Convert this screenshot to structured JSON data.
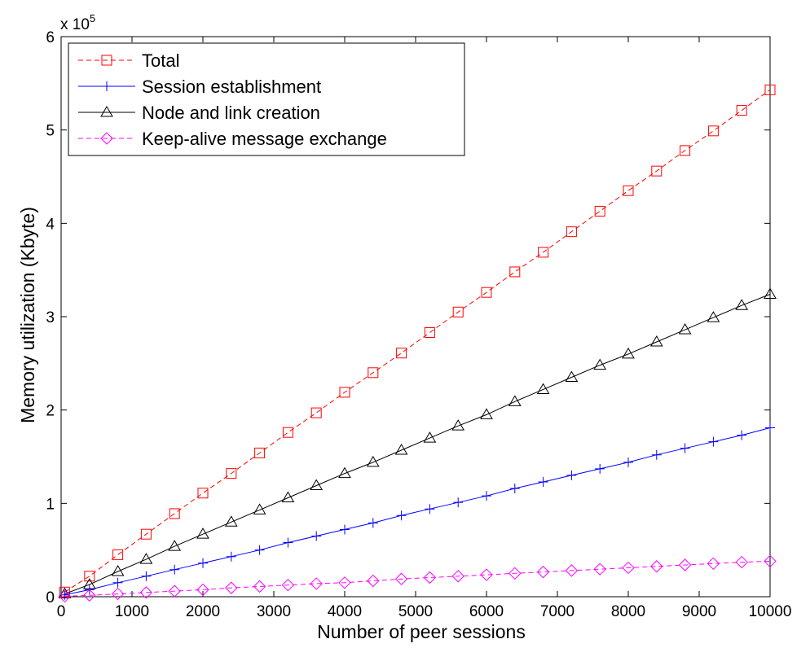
{
  "chart_data": {
    "type": "line",
    "title": "",
    "xlabel": "Number of peer sessions",
    "ylabel": "Memory utilization (Kbyte)",
    "xlim": [
      0,
      10000
    ],
    "ylim": [
      0,
      600000
    ],
    "x_ticks": [
      0,
      1000,
      2000,
      3000,
      4000,
      5000,
      6000,
      7000,
      8000,
      9000,
      10000
    ],
    "y_ticks": [
      0,
      1,
      2,
      3,
      4,
      5,
      6
    ],
    "y_multiplier_base": "x 10",
    "y_multiplier_exp": "5",
    "grid": false,
    "legend_position": "top-left",
    "x": [
      50,
      400,
      800,
      1200,
      1600,
      2000,
      2400,
      2800,
      3200,
      3600,
      4000,
      4400,
      4800,
      5200,
      5600,
      6000,
      6400,
      6800,
      7200,
      7600,
      8000,
      8400,
      8800,
      9200,
      9600,
      10000
    ],
    "series": [
      {
        "name": "Total",
        "color": "#ff0000",
        "line_style": "dashed",
        "marker": "square",
        "values": [
          5000,
          22000,
          45000,
          67000,
          89000,
          111000,
          132000,
          154000,
          176000,
          197000,
          219000,
          240000,
          261000,
          283000,
          305000,
          326000,
          348000,
          369000,
          391000,
          413000,
          435000,
          456000,
          478000,
          499000,
          521000,
          543000
        ]
      },
      {
        "name": "Session establishment",
        "color": "#0000ff",
        "line_style": "solid",
        "marker": "plus",
        "values": [
          2000,
          7500,
          15000,
          22000,
          29000,
          36000,
          43000,
          50000,
          58000,
          65000,
          72000,
          79000,
          87000,
          94000,
          101000,
          108000,
          116000,
          123000,
          130000,
          137000,
          144000,
          152000,
          159000,
          166000,
          173000,
          181000
        ]
      },
      {
        "name": "Node and link creation",
        "color": "#000000",
        "line_style": "solid",
        "marker": "triangle",
        "values": [
          3000,
          13000,
          27000,
          40000,
          54000,
          67000,
          80000,
          93000,
          106000,
          119000,
          132000,
          144000,
          157000,
          170000,
          183000,
          195000,
          209000,
          222000,
          235000,
          248000,
          260000,
          273000,
          286000,
          299000,
          312000,
          324000
        ]
      },
      {
        "name": "Keep-alive message exchange",
        "color": "#ff00ff",
        "line_style": "dashed",
        "marker": "diamond",
        "values": [
          500,
          1500,
          3000,
          4500,
          6000,
          7500,
          9500,
          11000,
          12500,
          14000,
          15000,
          17000,
          19000,
          20500,
          22000,
          23500,
          25000,
          26500,
          28000,
          29500,
          31000,
          32500,
          34000,
          35500,
          37000,
          38000
        ]
      }
    ]
  }
}
